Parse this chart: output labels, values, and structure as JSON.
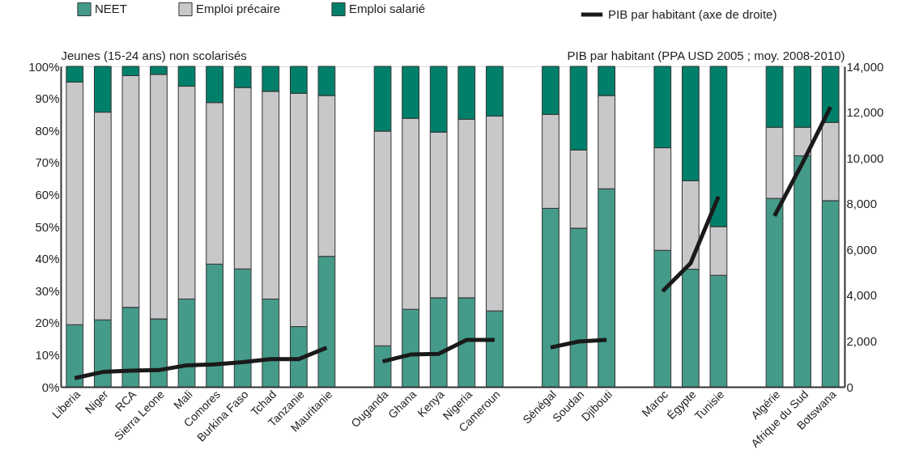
{
  "chart_data": {
    "type": "bar",
    "stacked": true,
    "legend": "top",
    "ylabel": "Jeunes (15-24 ans) non scolarisés",
    "y2label": "PIB par habitant (PPA USD 2005 ; moy. 2008-2010)",
    "categories": [
      "Liberia",
      "Niger",
      "RCA",
      "Sierra Leone",
      "Mali",
      "Comores",
      "Burkina Faso",
      "Tchad",
      "Tanzanie",
      "Mauritanie",
      null,
      "Ouganda",
      "Ghana",
      "Kenya",
      "Nigeria",
      "Cameroun",
      null,
      "Sénégal",
      "Soudan",
      "Djibouti",
      null,
      "Maroc",
      "Égypte",
      "Tunisie",
      null,
      "Algérie",
      "Afrique du Sud",
      "Botswana"
    ],
    "ylim": [
      0,
      100
    ],
    "yticks": [
      {
        "value": 0,
        "label": "0%"
      },
      {
        "value": 10,
        "label": "10%"
      },
      {
        "value": 20,
        "label": "20%"
      },
      {
        "value": 30,
        "label": "30%"
      },
      {
        "value": 40,
        "label": "40%"
      },
      {
        "value": 50,
        "label": "50%"
      },
      {
        "value": 60,
        "label": "60%"
      },
      {
        "value": 70,
        "label": "70%"
      },
      {
        "value": 80,
        "label": "80%"
      },
      {
        "value": 90,
        "label": "90%"
      },
      {
        "value": 100,
        "label": "100%"
      }
    ],
    "y2lim": [
      0,
      14000
    ],
    "y2ticks": [
      {
        "value": 0,
        "label": "0"
      },
      {
        "value": 2000,
        "label": "2,000"
      },
      {
        "value": 4000,
        "label": "4,000"
      },
      {
        "value": 6000,
        "label": "6,000"
      },
      {
        "value": 8000,
        "label": "8,000"
      },
      {
        "value": 10000,
        "label": "10,000"
      },
      {
        "value": 12000,
        "label": "12,000"
      },
      {
        "value": 14000,
        "label": "14,000"
      }
    ],
    "series": [
      {
        "name": "NEET",
        "color": "#449b8a",
        "values": [
          19.4,
          20.9,
          24.8,
          21.2,
          27.4,
          38.3,
          36.8,
          27.4,
          18.8,
          40.7,
          null,
          12.8,
          24.2,
          27.8,
          27.8,
          23.7,
          null,
          55.7,
          49.5,
          61.8,
          null,
          42.6,
          36.7,
          34.8,
          null,
          58.8,
          72.1,
          58.1
        ]
      },
      {
        "name": "Emploi précaire",
        "color": "#c8c8ca",
        "values": [
          75.7,
          64.8,
          72.3,
          76.3,
          66.4,
          50.4,
          56.6,
          64.8,
          72.8,
          50.2,
          null,
          67,
          59.6,
          51.7,
          55.7,
          60.8,
          null,
          29.3,
          24.4,
          29.1,
          null,
          32,
          27.6,
          15.2,
          null,
          22.2,
          8.9,
          24.4
        ]
      },
      {
        "name": "Emploi salarié",
        "color": "#00806a",
        "values": [
          4.9,
          14.3,
          2.9,
          2.5,
          6.2,
          11.3,
          6.6,
          7.8,
          8.4,
          9.1,
          null,
          20.2,
          16.2,
          20.5,
          16.5,
          15.5,
          null,
          15,
          26.1,
          9.1,
          null,
          25.4,
          35.7,
          50,
          null,
          19,
          19,
          17.5
        ]
      },
      {
        "name": "PIB par habitant (axe de droite)",
        "type": "line",
        "axis": "y2",
        "color": "#1a1a1a",
        "line_style": "solid",
        "values": [
          380,
          650,
          710,
          730,
          940,
          980,
          1080,
          1210,
          1210,
          1710,
          null,
          1110,
          1410,
          1440,
          2050,
          2050,
          null,
          1720,
          1980,
          2050,
          null,
          4170,
          5400,
          8320,
          null,
          7470,
          9780,
          12230
        ]
      }
    ]
  }
}
